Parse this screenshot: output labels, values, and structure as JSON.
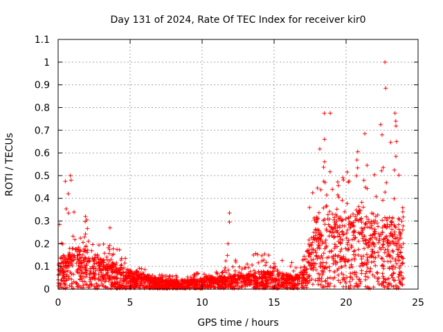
{
  "chart_data": {
    "type": "scatter",
    "title": "Day 131 of 2024, Rate Of TEC Index for receiver kir0",
    "xlabel": "GPS time / hours",
    "ylabel": "ROTI / TECUs",
    "xlim": [
      0,
      25
    ],
    "ylim": [
      0,
      1.1
    ],
    "xticks": [
      "0",
      "5",
      "10",
      "15",
      "20",
      "25"
    ],
    "yticks": [
      "0",
      "0.1",
      "0.2",
      "0.3",
      "0.4",
      "0.5",
      "0.6",
      "0.7",
      "0.8",
      "0.9",
      "1",
      "1.1"
    ],
    "grid": true,
    "marker": "+",
    "marker_color": "#ff0000",
    "series": [
      {
        "name": "ROTI",
        "envelope": {
          "x": [
            0,
            0.5,
            1,
            1.5,
            2,
            2.5,
            3,
            3.5,
            4,
            4.5,
            5,
            5.5,
            6,
            6.5,
            7,
            7.5,
            8,
            8.5,
            9,
            9.5,
            10,
            10.5,
            11,
            11.5,
            12,
            12.5,
            13,
            13.5,
            14,
            14.5,
            15,
            15.5,
            16,
            16.5,
            17,
            17.5,
            18,
            18.5,
            19,
            19.5,
            20,
            20.5,
            21,
            21.5,
            22,
            22.5,
            23,
            23.5,
            24
          ],
          "typical": [
            0.08,
            0.1,
            0.12,
            0.11,
            0.12,
            0.1,
            0.09,
            0.08,
            0.07,
            0.06,
            0.05,
            0.05,
            0.04,
            0.035,
            0.03,
            0.025,
            0.025,
            0.025,
            0.025,
            0.03,
            0.03,
            0.035,
            0.035,
            0.035,
            0.04,
            0.04,
            0.04,
            0.045,
            0.05,
            0.05,
            0.05,
            0.045,
            0.04,
            0.04,
            0.05,
            0.15,
            0.22,
            0.24,
            0.22,
            0.2,
            0.2,
            0.22,
            0.22,
            0.2,
            0.22,
            0.2,
            0.2,
            0.2,
            0.2
          ],
          "upper": [
            0.28,
            0.35,
            0.48,
            0.3,
            0.32,
            0.25,
            0.22,
            0.27,
            0.2,
            0.15,
            0.12,
            0.1,
            0.09,
            0.08,
            0.07,
            0.06,
            0.06,
            0.06,
            0.06,
            0.07,
            0.08,
            0.08,
            0.09,
            0.1,
            0.2,
            0.12,
            0.13,
            0.16,
            0.18,
            0.17,
            0.15,
            0.12,
            0.18,
            0.12,
            0.15,
            0.45,
            0.6,
            0.78,
            0.6,
            0.45,
            0.55,
            0.48,
            0.7,
            0.55,
            0.58,
            0.6,
            0.65,
            0.75,
            0.38
          ]
        },
        "outliers": [
          {
            "x": 22.7,
            "y": 1.0
          },
          {
            "x": 22.75,
            "y": 0.885
          },
          {
            "x": 18.9,
            "y": 0.775
          },
          {
            "x": 23.4,
            "y": 0.775
          },
          {
            "x": 23.45,
            "y": 0.74
          },
          {
            "x": 22.4,
            "y": 0.725
          },
          {
            "x": 21.3,
            "y": 0.685
          },
          {
            "x": 22.5,
            "y": 0.68
          },
          {
            "x": 23.5,
            "y": 0.65
          },
          {
            "x": 18.5,
            "y": 0.66
          },
          {
            "x": 0.85,
            "y": 0.5
          },
          {
            "x": 0.9,
            "y": 0.48
          },
          {
            "x": 0.5,
            "y": 0.475
          },
          {
            "x": 0.7,
            "y": 0.42
          },
          {
            "x": 11.9,
            "y": 0.335
          },
          {
            "x": 11.9,
            "y": 0.295
          },
          {
            "x": 1.9,
            "y": 0.32
          },
          {
            "x": 3.6,
            "y": 0.27
          },
          {
            "x": 0.1,
            "y": 0.285
          },
          {
            "x": 11.8,
            "y": 0.2
          }
        ]
      }
    ]
  }
}
